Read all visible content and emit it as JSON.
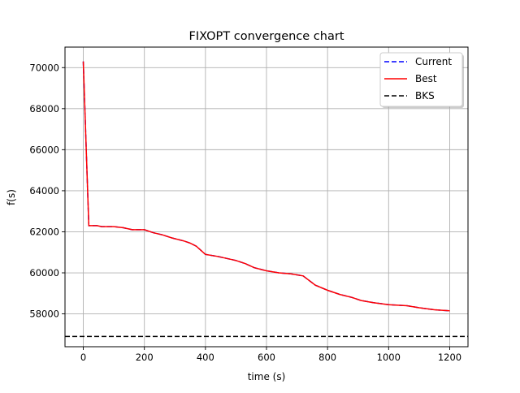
{
  "chart_data": {
    "type": "line",
    "title": "FIXOPT convergence chart",
    "xlabel": "time (s)",
    "ylabel": "f(s)",
    "xlim": [
      -60,
      1260
    ],
    "ylim": [
      56400,
      71000
    ],
    "xticks": [
      0,
      200,
      400,
      600,
      800,
      1000,
      1200
    ],
    "yticks": [
      58000,
      60000,
      62000,
      64000,
      66000,
      68000,
      70000
    ],
    "xtick_labels": [
      "0",
      "200",
      "400",
      "600",
      "800",
      "1000",
      "1200"
    ],
    "ytick_labels": [
      "58000",
      "60000",
      "62000",
      "64000",
      "66000",
      "68000",
      "70000"
    ],
    "grid": true,
    "legend_position": "top-right",
    "series": [
      {
        "name": "Current",
        "color": "#0000ff",
        "style": "dashed",
        "x": [
          0,
          18,
          30,
          45,
          60,
          100,
          130,
          160,
          200,
          230,
          260,
          290,
          330,
          350,
          370,
          400,
          440,
          470,
          500,
          530,
          560,
          600,
          640,
          680,
          720,
          760,
          800,
          840,
          880,
          910,
          950,
          1000,
          1060,
          1100,
          1150,
          1200
        ],
        "y": [
          70300,
          62300,
          62300,
          62300,
          62250,
          62250,
          62200,
          62100,
          62100,
          61950,
          61850,
          61700,
          61550,
          61450,
          61300,
          60900,
          60800,
          60700,
          60600,
          60450,
          60250,
          60100,
          60000,
          59950,
          59850,
          59400,
          59150,
          58950,
          58800,
          58650,
          58550,
          58450,
          58400,
          58300,
          58200,
          58150
        ]
      },
      {
        "name": "Best",
        "color": "#ff0000",
        "style": "solid",
        "x": [
          0,
          18,
          30,
          45,
          60,
          100,
          130,
          160,
          200,
          230,
          260,
          290,
          330,
          350,
          370,
          400,
          440,
          470,
          500,
          530,
          560,
          600,
          640,
          680,
          720,
          760,
          800,
          840,
          880,
          910,
          950,
          1000,
          1060,
          1100,
          1150,
          1200
        ],
        "y": [
          70300,
          62300,
          62300,
          62300,
          62250,
          62250,
          62200,
          62100,
          62100,
          61950,
          61850,
          61700,
          61550,
          61450,
          61300,
          60900,
          60800,
          60700,
          60600,
          60450,
          60250,
          60100,
          60000,
          59950,
          59850,
          59400,
          59150,
          58950,
          58800,
          58650,
          58550,
          58450,
          58400,
          58300,
          58200,
          58150
        ]
      }
    ],
    "reference_lines": [
      {
        "name": "BKS",
        "color": "#000000",
        "style": "dashed",
        "y": 56900
      }
    ],
    "legend": [
      "Current",
      "Best",
      "BKS"
    ]
  }
}
